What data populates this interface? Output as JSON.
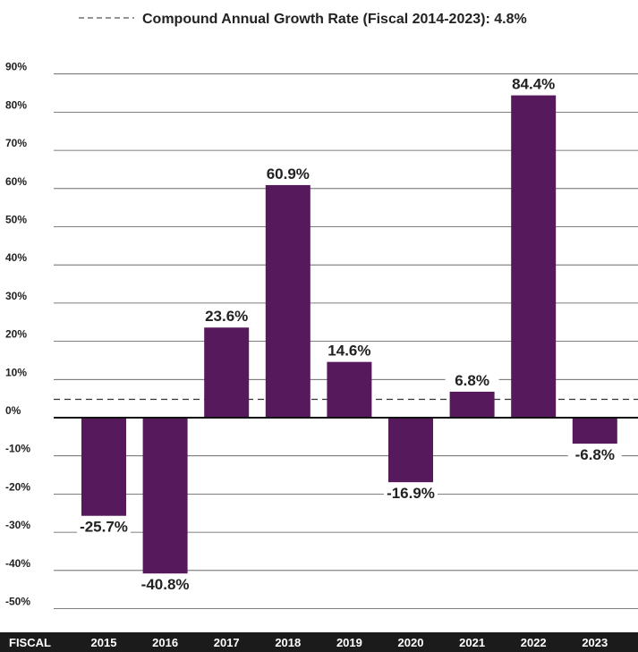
{
  "chart_data": {
    "type": "bar",
    "legend": {
      "label": "Compound Annual Growth Rate (Fiscal 2014-2023): 4.8%",
      "position": "top-center"
    },
    "reference_line": {
      "value": 4.8,
      "style": "dashed"
    },
    "x_axis_label": "FISCAL",
    "categories": [
      "2015",
      "2016",
      "2017",
      "2018",
      "2019",
      "2020",
      "2021",
      "2022",
      "2023"
    ],
    "values": [
      -25.7,
      -40.8,
      23.6,
      60.9,
      14.6,
      -16.9,
      6.8,
      84.4,
      -6.8
    ],
    "value_labels": [
      "-25.7%",
      "-40.8%",
      "23.6%",
      "60.9%",
      "14.6%",
      "-16.9%",
      "6.8%",
      "84.4%",
      "-6.8%"
    ],
    "yticks": [
      90,
      80,
      70,
      60,
      50,
      40,
      30,
      20,
      10,
      0,
      -10,
      -20,
      -30,
      -40,
      -50
    ],
    "ytick_labels": [
      "90%",
      "80%",
      "70%",
      "60%",
      "50%",
      "40%",
      "30%",
      "20%",
      "10%",
      "0%",
      "-10%",
      "-20%",
      "-30%",
      "-40%",
      "-50%"
    ],
    "ylim": [
      -50,
      90
    ],
    "grid": true,
    "colors": {
      "bar": "#561a5c",
      "grid": "#555555",
      "footer": "#1b1b1b",
      "footer_text": "#ffffff"
    }
  }
}
